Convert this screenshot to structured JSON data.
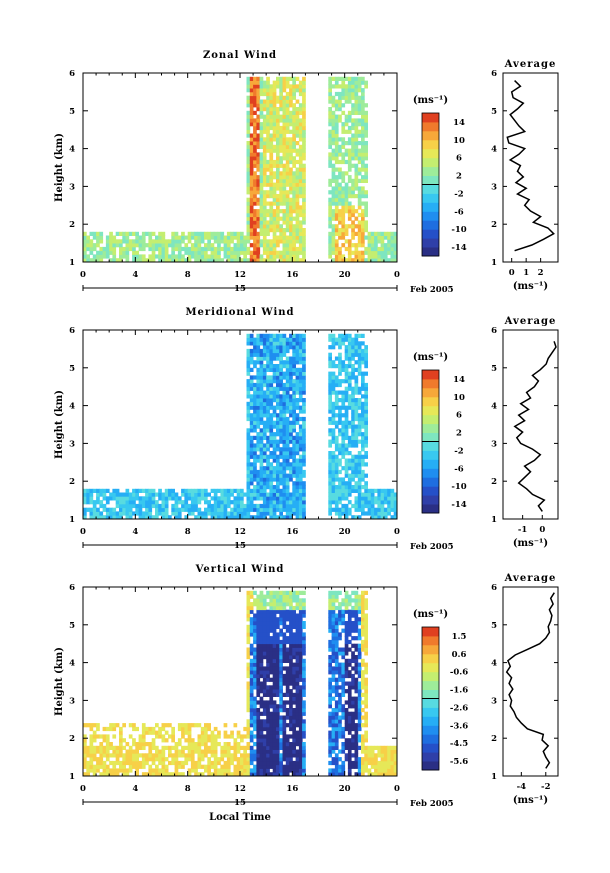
{
  "chart_data": [
    {
      "type": "heatmap",
      "title": "Zonal Wind",
      "ylabel": "Height (km)",
      "xticks": [
        "0",
        "4",
        "8",
        "12",
        "16",
        "20",
        "0"
      ],
      "xlim": [
        0,
        24
      ],
      "yticks": [
        "1",
        "2",
        "3",
        "4",
        "5",
        "6"
      ],
      "ylim": [
        1,
        6
      ],
      "date_label": "15",
      "month_label": "Feb 2005",
      "colorbar": {
        "unit": "(ms⁻¹)",
        "ticks": [
          "14",
          "10",
          "6",
          "2",
          "-2",
          "-6",
          "-10",
          "-14"
        ],
        "range": [
          -16,
          16
        ],
        "colors": [
          "#2a2f85",
          "#2f3fa8",
          "#2550c8",
          "#1e6ee0",
          "#1f8ef0",
          "#26aef5",
          "#38c8f0",
          "#58dbe0",
          "#7ee6c0",
          "#9eec9a",
          "#c4ee70",
          "#e6e858",
          "#f7d048",
          "#f7a83a",
          "#f07a2c",
          "#e04020"
        ]
      },
      "profile": {
        "title": "Average",
        "xticks": [
          "0",
          "1",
          "2"
        ],
        "xlim": [
          -0.6,
          3.2
        ],
        "unit": "(ms⁻¹)",
        "heights": [
          1.3,
          1.45,
          1.6,
          1.75,
          1.9,
          2.05,
          2.2,
          2.35,
          2.5,
          2.65,
          2.8,
          2.95,
          3.1,
          3.25,
          3.4,
          3.55,
          3.7,
          3.85,
          4.0,
          4.15,
          4.3,
          4.45,
          4.6,
          4.75,
          4.9,
          5.05,
          5.2,
          5.35,
          5.5,
          5.65,
          5.8
        ],
        "values": [
          0.2,
          1.4,
          2.2,
          2.9,
          2.5,
          1.5,
          2.0,
          1.3,
          0.9,
          1.2,
          0.4,
          1.0,
          0.3,
          0.8,
          0.4,
          0.6,
          -0.1,
          0.5,
          0.9,
          -0.2,
          -0.3,
          0.9,
          0.5,
          0.2,
          -0.1,
          0.4,
          0.8,
          0.1,
          0.0,
          0.6,
          0.2
        ]
      }
    },
    {
      "type": "heatmap",
      "title": "Meridional Wind",
      "ylabel": "Height (km)",
      "xticks": [
        "0",
        "4",
        "8",
        "12",
        "16",
        "20",
        "0"
      ],
      "xlim": [
        0,
        24
      ],
      "yticks": [
        "1",
        "2",
        "3",
        "4",
        "5",
        "6"
      ],
      "ylim": [
        1,
        6
      ],
      "date_label": "15",
      "month_label": "Feb 2005",
      "colorbar": {
        "unit": "(ms⁻¹)",
        "ticks": [
          "14",
          "10",
          "6",
          "2",
          "-2",
          "-6",
          "-10",
          "-14"
        ],
        "range": [
          -16,
          16
        ],
        "colors": [
          "#2a2f85",
          "#2f3fa8",
          "#2550c8",
          "#1e6ee0",
          "#1f8ef0",
          "#26aef5",
          "#38c8f0",
          "#58dbe0",
          "#7ee6c0",
          "#9eec9a",
          "#c4ee70",
          "#e6e858",
          "#f7d048",
          "#f7a83a",
          "#f07a2c",
          "#e04020"
        ]
      },
      "profile": {
        "title": "Average",
        "xticks": [
          "-1",
          "0"
        ],
        "xlim": [
          -2.0,
          0.8
        ],
        "unit": "(ms⁻¹)",
        "heights": [
          1.2,
          1.35,
          1.5,
          1.65,
          1.8,
          1.95,
          2.1,
          2.25,
          2.4,
          2.55,
          2.7,
          2.85,
          3.0,
          3.15,
          3.3,
          3.45,
          3.6,
          3.75,
          3.9,
          4.05,
          4.2,
          4.35,
          4.5,
          4.65,
          4.8,
          4.95,
          5.1,
          5.25,
          5.4,
          5.55,
          5.7
        ],
        "values": [
          0.0,
          -0.2,
          0.1,
          -0.5,
          -0.8,
          -1.2,
          -0.9,
          -0.6,
          -0.9,
          -0.4,
          -0.1,
          -0.5,
          -1.1,
          -1.3,
          -1.0,
          -1.4,
          -0.9,
          -1.2,
          -0.7,
          -1.1,
          -0.6,
          -0.8,
          -0.4,
          -0.2,
          -0.5,
          -0.1,
          0.2,
          0.3,
          0.5,
          0.7,
          0.6
        ]
      }
    },
    {
      "type": "heatmap",
      "title": "Vertical Wind",
      "ylabel": "Height (km)",
      "xlabel": "Local Time",
      "xticks": [
        "0",
        "4",
        "8",
        "12",
        "16",
        "20",
        "0"
      ],
      "xlim": [
        0,
        24
      ],
      "yticks": [
        "1",
        "2",
        "3",
        "4",
        "5",
        "6"
      ],
      "ylim": [
        1,
        6
      ],
      "date_label": "15",
      "month_label": "Feb 2005",
      "colorbar": {
        "unit": "(ms⁻¹)",
        "ticks": [
          "1.5",
          "0.6",
          "-0.6",
          "-1.6",
          "-2.6",
          "-3.6",
          "-4.5",
          "-5.6"
        ],
        "range": [
          -6.1,
          2.0
        ],
        "colors": [
          "#2a2f85",
          "#2f3fa8",
          "#2550c8",
          "#1e6ee0",
          "#1f8ef0",
          "#26aef5",
          "#38c8f0",
          "#58dbe0",
          "#7ee6c0",
          "#9eec9a",
          "#c4ee70",
          "#e6e858",
          "#f7d048",
          "#f7a83a",
          "#f07a2c",
          "#e04020"
        ]
      },
      "profile": {
        "title": "Average",
        "xticks": [
          "-4",
          "-2"
        ],
        "xlim": [
          -5.5,
          -1.0
        ],
        "unit": "(ms⁻¹)",
        "heights": [
          1.2,
          1.35,
          1.5,
          1.65,
          1.8,
          1.95,
          2.1,
          2.25,
          2.4,
          2.55,
          2.7,
          2.85,
          3.0,
          3.15,
          3.3,
          3.45,
          3.6,
          3.75,
          3.9,
          4.05,
          4.2,
          4.35,
          4.5,
          4.65,
          4.8,
          4.95,
          5.1,
          5.25,
          5.4,
          5.55,
          5.7,
          5.85
        ],
        "values": [
          -2.0,
          -1.7,
          -2.0,
          -2.2,
          -1.8,
          -2.3,
          -2.2,
          -3.5,
          -4.0,
          -4.4,
          -4.6,
          -4.9,
          -4.8,
          -5.0,
          -4.7,
          -5.0,
          -4.8,
          -5.2,
          -4.9,
          -5.1,
          -4.5,
          -3.5,
          -2.5,
          -2.0,
          -1.7,
          -1.8,
          -1.6,
          -1.5,
          -1.7,
          -1.4,
          -1.6,
          -1.3
        ]
      }
    }
  ]
}
